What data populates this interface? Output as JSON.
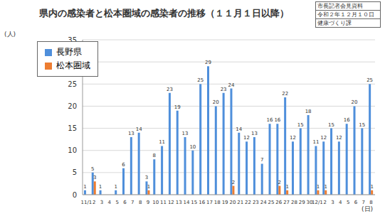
{
  "chart_data": {
    "type": "bar",
    "title": "県内の感染者と松本圏域の感染者の推移（１１月１日以降）",
    "annotations": [
      "市長記者会見資料",
      "令和２年１２月１０日",
      "健康づくり課"
    ],
    "y_label": "(人)",
    "x_label": "(日)",
    "categories": [
      "11/1",
      "2",
      "3",
      "4",
      "5",
      "6",
      "7",
      "8",
      "9",
      "10",
      "11",
      "12",
      "13",
      "14",
      "15",
      "16",
      "17",
      "18",
      "19",
      "20",
      "21",
      "22",
      "23",
      "24",
      "25",
      "26",
      "27",
      "28",
      "29",
      "30",
      "12/1",
      "2",
      "3",
      "4",
      "5",
      "6",
      "7",
      "8"
    ],
    "series": [
      {
        "name": "長野県",
        "color": "#4f8fdb",
        "values": [
          1,
          5,
          1,
          0,
          1,
          6,
          13,
          14,
          3,
          8,
          11,
          23,
          19,
          13,
          10,
          25,
          29,
          20,
          23,
          24,
          14,
          12,
          13,
          7,
          16,
          16,
          22,
          12,
          15,
          18,
          11,
          12,
          15,
          12,
          16,
          20,
          15,
          25
        ]
      },
      {
        "name": "松本圏域",
        "color": "#ed7d31",
        "values": [
          null,
          3,
          null,
          null,
          null,
          null,
          null,
          null,
          1,
          null,
          null,
          null,
          null,
          null,
          null,
          null,
          null,
          null,
          null,
          2,
          null,
          null,
          null,
          null,
          null,
          2,
          1,
          null,
          null,
          null,
          1,
          1,
          null,
          null,
          null,
          null,
          null,
          1
        ]
      }
    ],
    "ylim": [
      0,
      35
    ],
    "yticks": [
      0,
      5,
      10,
      15,
      20,
      25,
      30,
      35
    ],
    "grid": true,
    "legend": "upper left",
    "data_labels": true
  }
}
